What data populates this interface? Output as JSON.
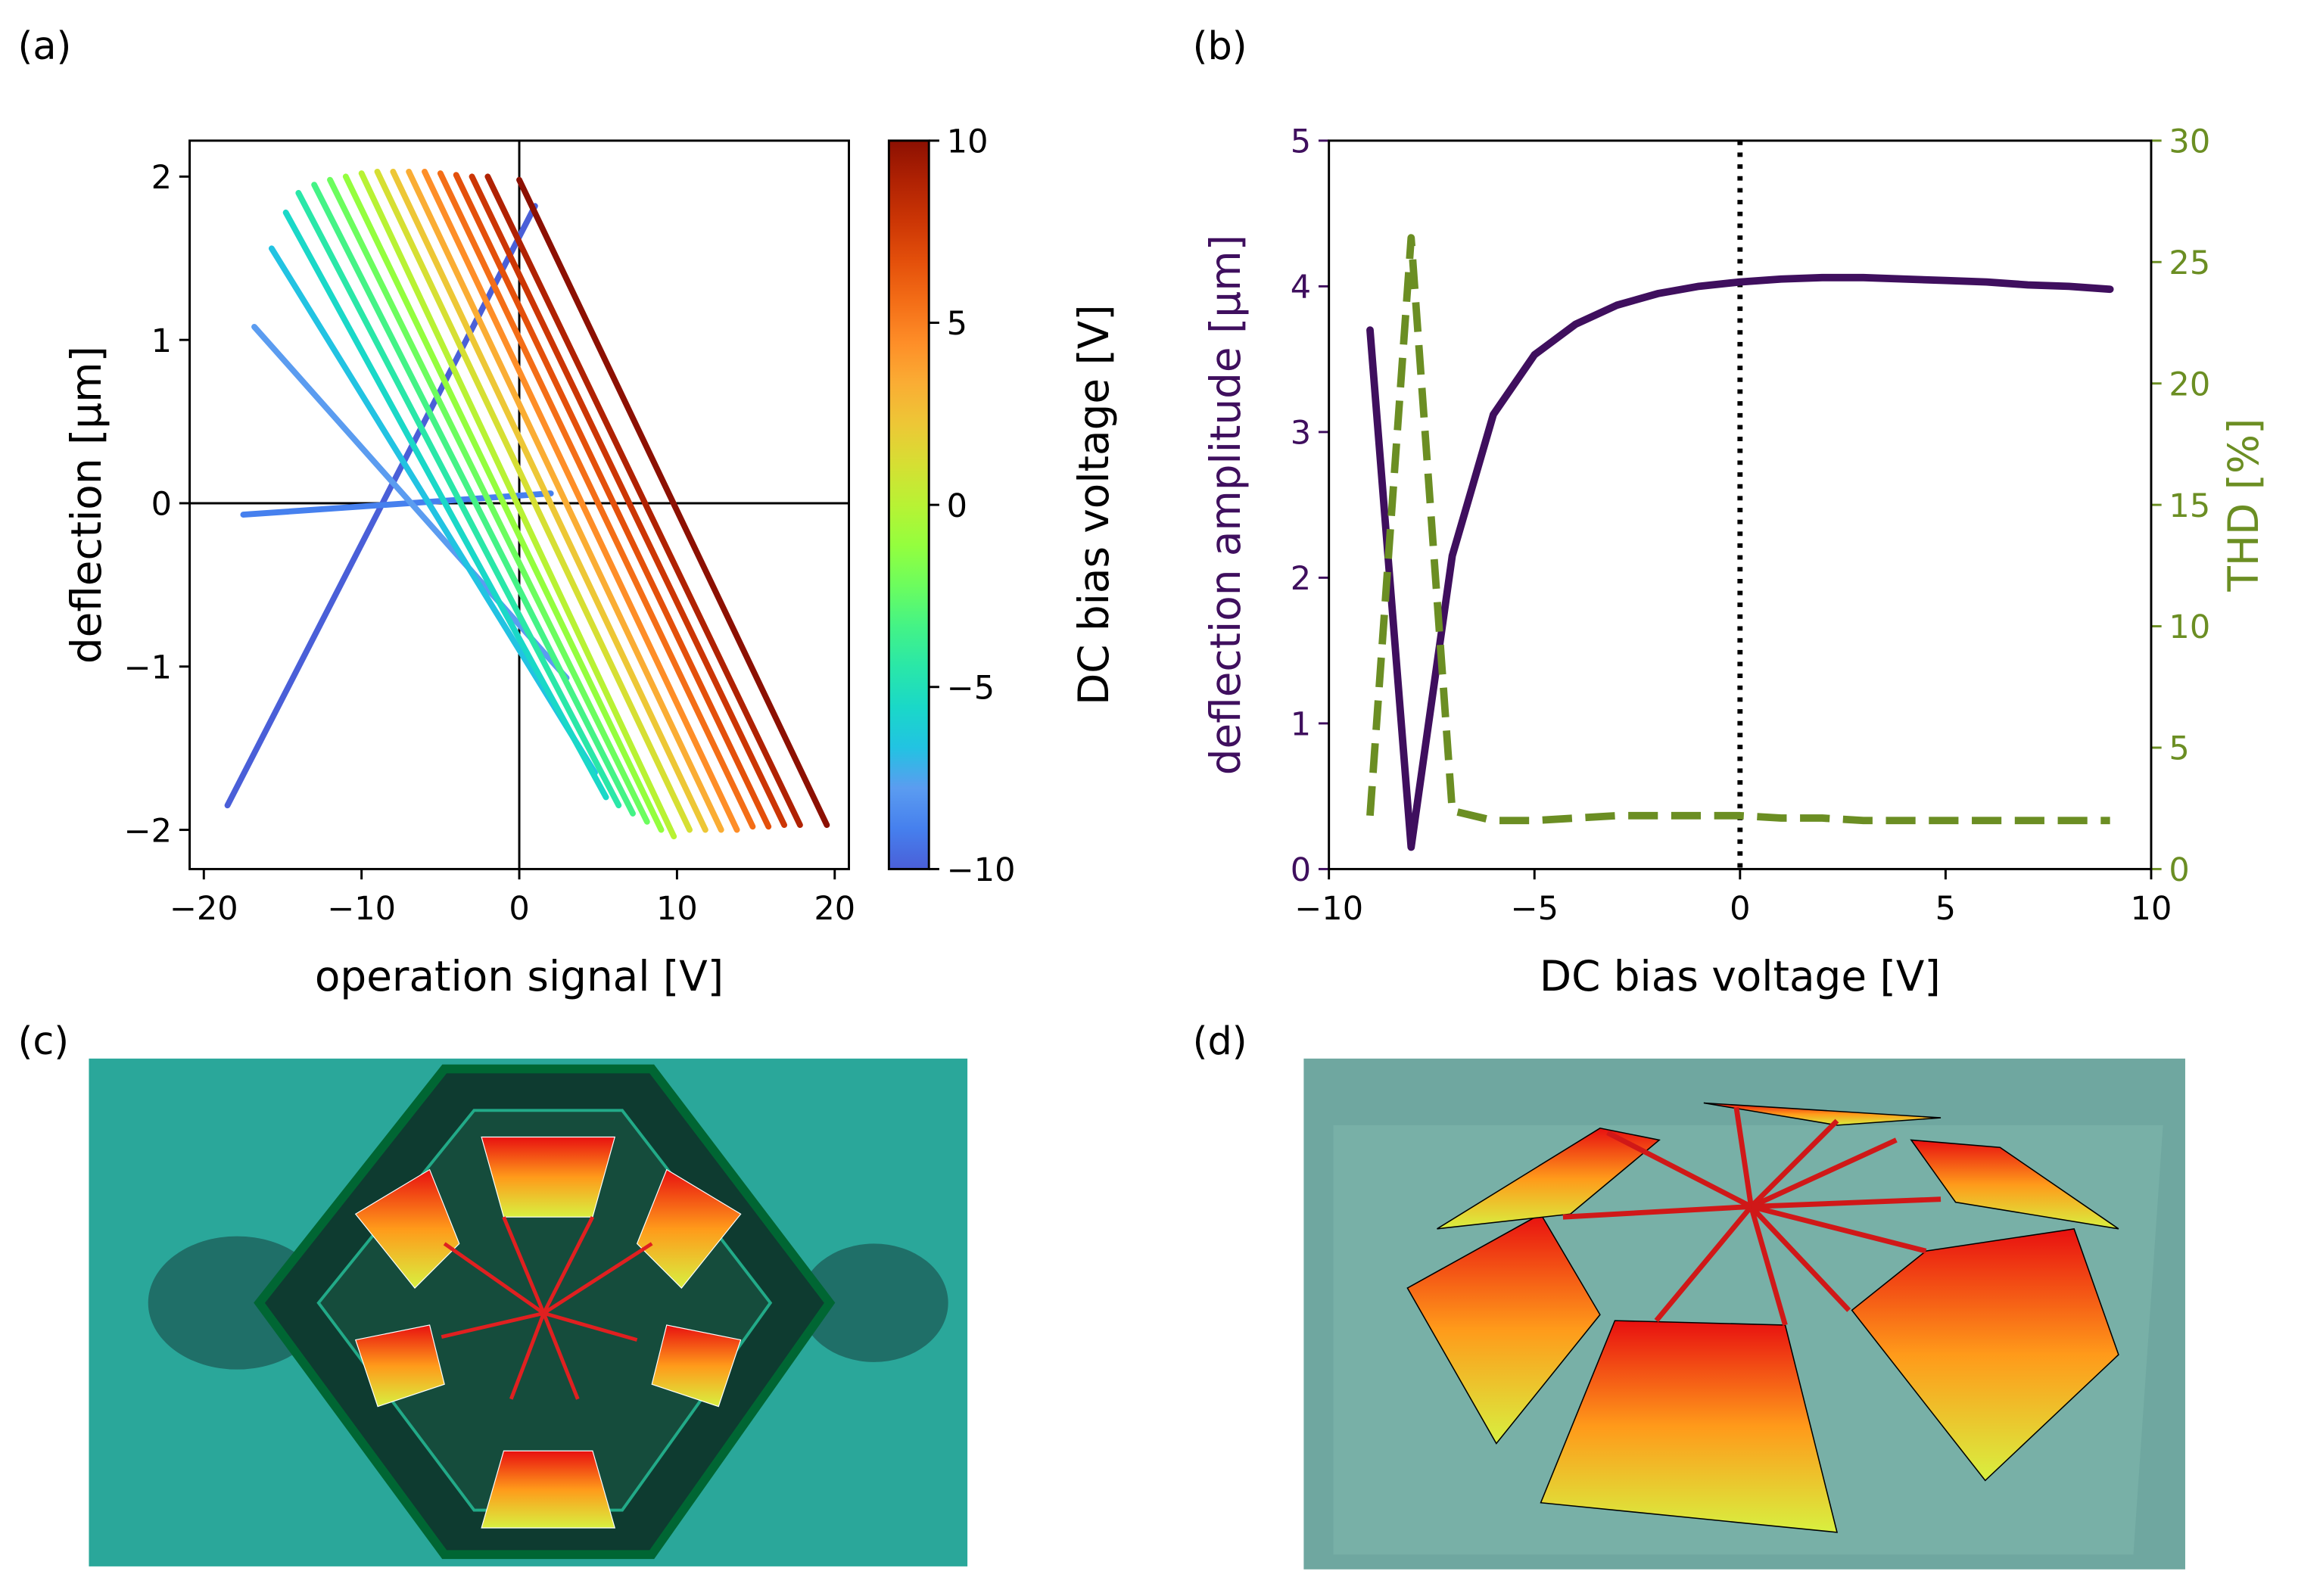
{
  "panel_labels": [
    "(a)",
    "(b)",
    "(c)",
    "(d)"
  ],
  "chart_data": [
    {
      "type": "line",
      "xlabel": "operation signal [V]",
      "ylabel": "deflection [µm]",
      "xlim": [
        -20.9,
        20.9
      ],
      "ylim": [
        -2.24,
        2.22
      ],
      "xticks": [
        {
          "value": -20,
          "label": "−20"
        },
        {
          "value": -10,
          "label": "−10"
        },
        0,
        10,
        20
      ],
      "yticks": [
        {
          "value": -2,
          "label": "−2"
        },
        {
          "value": -1,
          "label": "−1"
        },
        0,
        1,
        2
      ],
      "zero_lines": true,
      "series": [
        {
          "color": "#4a5fd8",
          "x": [
            -18.5,
            1.0
          ],
          "values": [
            -1.85,
            1.82
          ]
        },
        {
          "color": "#4680ee",
          "x": [
            -17.5,
            2.0
          ],
          "values": [
            -0.07,
            0.06
          ]
        },
        {
          "color": "#5b9cf0",
          "x": [
            -16.8,
            3.0
          ],
          "values": [
            1.08,
            -1.07
          ]
        },
        {
          "color": "#22c3e2",
          "x": [
            -15.7,
            4.8
          ],
          "values": [
            1.56,
            -1.65
          ]
        },
        {
          "color": "#1ad8c8",
          "x": [
            -14.8,
            5.5
          ],
          "values": [
            1.78,
            -1.8
          ]
        },
        {
          "color": "#2ae7a8",
          "x": [
            -14.0,
            6.3
          ],
          "values": [
            1.9,
            -1.85
          ]
        },
        {
          "color": "#44f386",
          "x": [
            -13.0,
            7.2
          ],
          "values": [
            1.95,
            -1.9
          ]
        },
        {
          "color": "#6cfd5e",
          "x": [
            -12.0,
            8.1
          ],
          "values": [
            1.98,
            -1.95
          ]
        },
        {
          "color": "#94fe3e",
          "x": [
            -11.0,
            9.0
          ],
          "values": [
            2.0,
            -2.0
          ]
        },
        {
          "color": "#b8f234",
          "x": [
            -10.0,
            9.8
          ],
          "values": [
            2.02,
            -2.04
          ]
        },
        {
          "color": "#d6df33",
          "x": [
            -9.0,
            10.8
          ],
          "values": [
            2.03,
            -2.0
          ]
        },
        {
          "color": "#edc736",
          "x": [
            -8.0,
            11.8
          ],
          "values": [
            2.03,
            -2.0
          ]
        },
        {
          "color": "#faad34",
          "x": [
            -7.0,
            12.8
          ],
          "values": [
            2.03,
            -2.0
          ]
        },
        {
          "color": "#fe8e28",
          "x": [
            -6.0,
            13.8
          ],
          "values": [
            2.03,
            -2.0
          ]
        },
        {
          "color": "#f46e17",
          "x": [
            -5.0,
            14.8
          ],
          "values": [
            2.02,
            -1.98
          ]
        },
        {
          "color": "#e4500b",
          "x": [
            -4.0,
            15.8
          ],
          "values": [
            2.01,
            -1.98
          ]
        },
        {
          "color": "#cc3605",
          "x": [
            -3.0,
            16.8
          ],
          "values": [
            2.0,
            -1.97
          ]
        },
        {
          "color": "#b02203",
          "x": [
            -2.0,
            17.8
          ],
          "values": [
            2.0,
            -1.97
          ]
        },
        {
          "color": "#8c1002",
          "x": [
            0.0,
            19.5
          ],
          "values": [
            1.98,
            -1.97
          ]
        }
      ],
      "colorbar": {
        "label": "DC bias voltage [V]",
        "lim": [
          -10,
          10
        ],
        "ticks": [
          {
            "value": -10,
            "label": "−10"
          },
          {
            "value": -5,
            "label": "−5"
          },
          0,
          5,
          10
        ]
      }
    },
    {
      "type": "line",
      "xlabel": "DC bias voltage [V]",
      "ylabel": "deflection amplitude [µm]",
      "y2label": "THD  [%]",
      "xlim": [
        -10,
        10
      ],
      "ylim": [
        0,
        5
      ],
      "y2lim": [
        0,
        30
      ],
      "xticks": [
        {
          "value": -10,
          "label": "−10"
        },
        {
          "value": -5,
          "label": "−5"
        },
        0,
        5,
        10
      ],
      "yticks": [
        0,
        1,
        2,
        3,
        4,
        5
      ],
      "y2ticks": [
        0,
        5,
        10,
        15,
        20,
        25,
        30
      ],
      "vline": 0,
      "x": [
        -9,
        -8,
        -7,
        -6,
        -5,
        -4,
        -3,
        -2,
        -1,
        0,
        1,
        2,
        3,
        4,
        5,
        6,
        7,
        8,
        9
      ],
      "series": [
        {
          "color": "#3f0f5e",
          "values": [
            3.7,
            0.15,
            2.15,
            3.12,
            3.53,
            3.74,
            3.87,
            3.95,
            4.0,
            4.03,
            4.05,
            4.06,
            4.06,
            4.05,
            4.04,
            4.03,
            4.01,
            4.0,
            3.98
          ]
        },
        {
          "color": "#6b8e23",
          "axis": "y2",
          "dash": true,
          "values": [
            2.2,
            26,
            2.4,
            2.0,
            2.0,
            2.1,
            2.2,
            2.2,
            2.2,
            2.2,
            2.1,
            2.1,
            2.0,
            2.0,
            2.0,
            2.0,
            2.0,
            2.0,
            2.0
          ]
        }
      ]
    }
  ]
}
